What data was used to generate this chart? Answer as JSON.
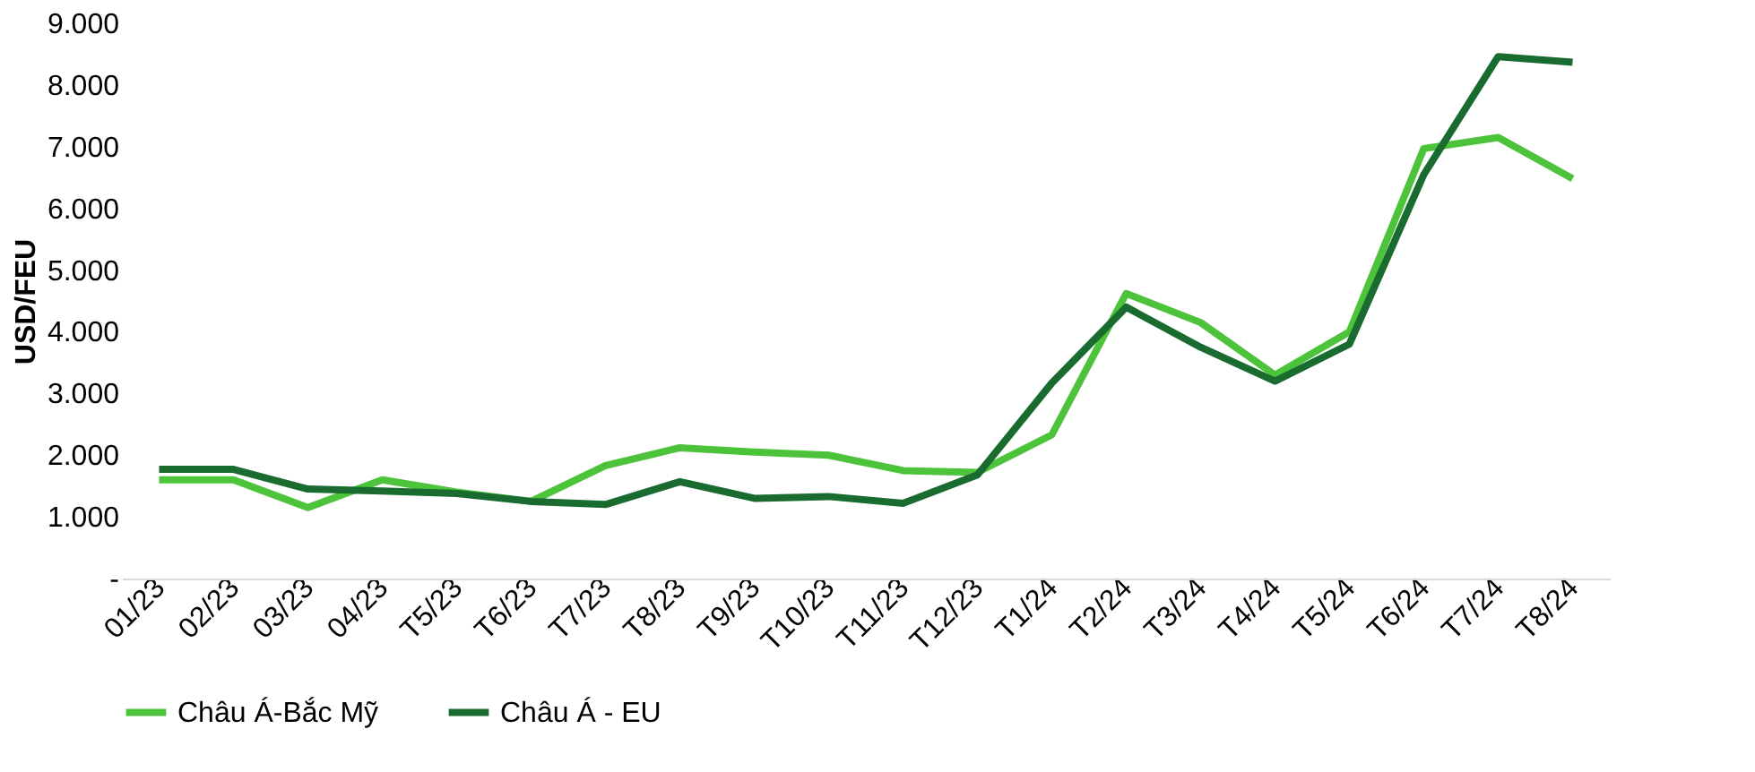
{
  "chart_data": {
    "type": "line",
    "ylabel": "USD/FEU",
    "categories": [
      "01/23",
      "02/23",
      "03/23",
      "04/23",
      "T5/23",
      "T6/23",
      "T7/23",
      "T8/23",
      "T9/23",
      "T10/23",
      "T11/23",
      "T12/23",
      "T1/24",
      "T2/24",
      "T3/24",
      "T4/24",
      "T5/24",
      "T6/24",
      "T7/24",
      "T8/24"
    ],
    "series": [
      {
        "name": "Châu Á-Bắc Mỹ",
        "color": "#4cc33a",
        "values": [
          1.6,
          1.6,
          1.15,
          1.6,
          1.4,
          1.25,
          1.83,
          2.12,
          2.05,
          2.0,
          1.75,
          1.72,
          2.33,
          4.62,
          4.15,
          3.3,
          4.0,
          6.97,
          7.15,
          6.48
        ]
      },
      {
        "name": "Châu Á - EU",
        "color": "#1a6b30",
        "values": [
          1.77,
          1.77,
          1.45,
          1.42,
          1.38,
          1.25,
          1.2,
          1.57,
          1.3,
          1.33,
          1.22,
          1.68,
          3.17,
          4.4,
          3.75,
          3.2,
          3.8,
          6.55,
          8.46,
          8.37
        ]
      }
    ],
    "ylim": [
      0,
      9
    ],
    "yticks": [
      {
        "value": 0,
        "label": "-"
      },
      {
        "value": 1,
        "label": "1.000"
      },
      {
        "value": 2,
        "label": "2.000"
      },
      {
        "value": 3,
        "label": "3.000"
      },
      {
        "value": 4,
        "label": "4.000"
      },
      {
        "value": 5,
        "label": "5.000"
      },
      {
        "value": 6,
        "label": "6.000"
      },
      {
        "value": 7,
        "label": "7.000"
      },
      {
        "value": 8,
        "label": "8.000"
      },
      {
        "value": 9,
        "label": "9.000"
      }
    ],
    "grid": false,
    "legend": "bottom",
    "marker": "none",
    "line_style": "solid"
  }
}
